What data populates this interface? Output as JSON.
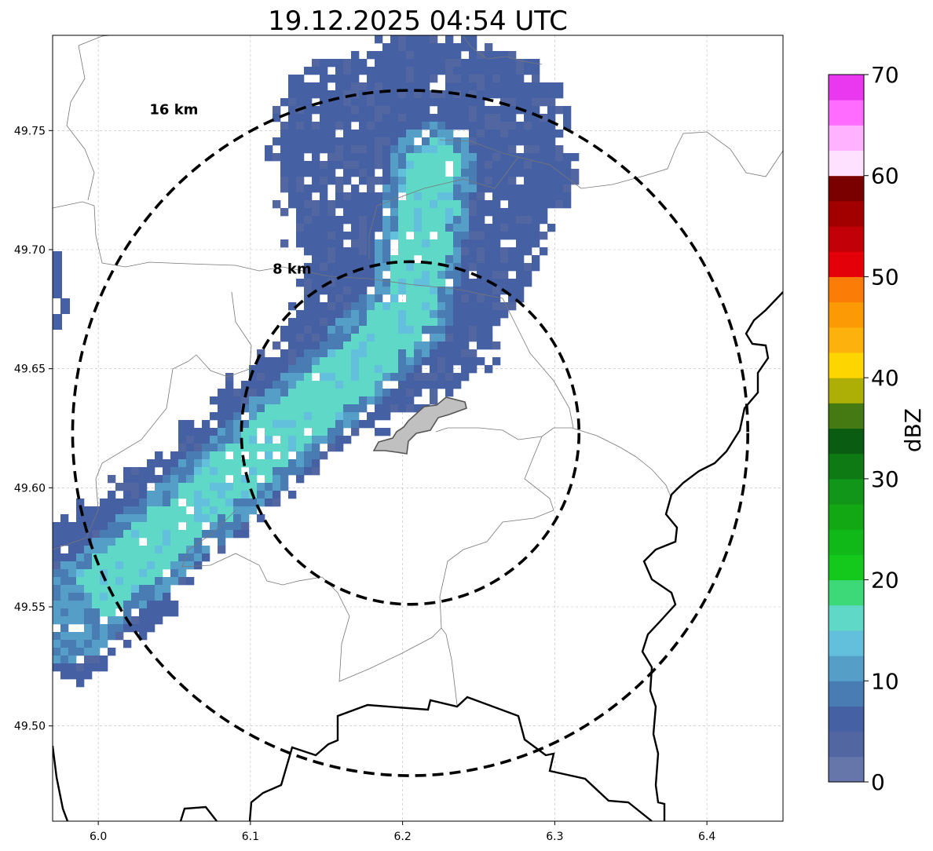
{
  "chart_data": {
    "type": "heatmap",
    "title": "19.12.2025 04:54 UTC",
    "x_ticks": [
      "6.0",
      "6.1",
      "6.2",
      "6.3",
      "6.4"
    ],
    "y_ticks": [
      "49.50",
      "49.55",
      "49.60",
      "49.65",
      "49.70",
      "49.75"
    ],
    "x_tick_values": [
      6.0,
      6.1,
      6.2,
      6.3,
      6.4
    ],
    "y_tick_values": [
      49.5,
      49.55,
      49.6,
      49.65,
      49.7,
      49.75
    ],
    "xlim": [
      5.97,
      6.45
    ],
    "ylim": [
      49.46,
      49.79
    ],
    "grid": true,
    "radar_center": [
      6.205,
      49.623
    ],
    "range_rings": [
      {
        "label": "8 km",
        "radius_km": 8
      },
      {
        "label": "16 km",
        "radius_km": 16
      }
    ],
    "colorbar": {
      "label": "dBZ",
      "vmin": 0,
      "vmax": 70,
      "step": 2.5,
      "tick_labels": [
        "0",
        "10",
        "20",
        "30",
        "40",
        "50",
        "60",
        "70"
      ],
      "tick_values": [
        0,
        10,
        20,
        30,
        40,
        50,
        60,
        70
      ],
      "colors": [
        "#6675aa",
        "#5266a2",
        "#4560a3",
        "#4a7cb4",
        "#559ec8",
        "#63c0dc",
        "#5fd8c8",
        "#3dd878",
        "#14c81c",
        "#10b818",
        "#12a814",
        "#12961a",
        "#0e7a14",
        "#0a5c12",
        "#457a12",
        "#adae06",
        "#fdd500",
        "#fcb10c",
        "#fc9a05",
        "#fc7c08",
        "#e40008",
        "#c00006",
        "#a20000",
        "#7a0000",
        "#fee0ff",
        "#ffb2ff",
        "#ff6cff",
        "#e938ef"
      ]
    },
    "precipitation_band": {
      "description_axis": "band from southwest to northeast",
      "core_axis": [
        [
          5.98,
          49.545
        ],
        [
          6.1,
          49.612
        ],
        [
          6.165,
          49.648
        ],
        [
          6.205,
          49.675
        ],
        [
          6.22,
          49.735
        ]
      ],
      "core_dbz": 16,
      "main_dbz": 6
    }
  }
}
